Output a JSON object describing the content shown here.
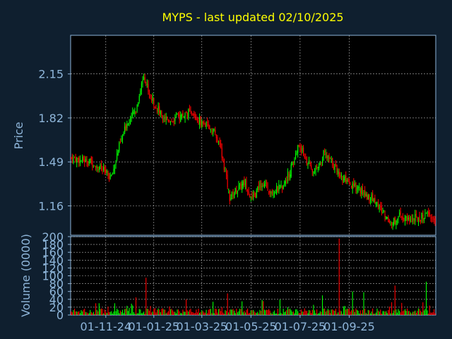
{
  "colors": {
    "background": "#0f1f2f",
    "panel": "#000000",
    "grid": "#ffffff",
    "axis": "#8eb5d9",
    "title": "#ffff00",
    "up": "#00ff00",
    "down": "#ff0000"
  },
  "chart_data": [
    {
      "type": "candlestick",
      "title": "MYPS - last updated 02/10/2025",
      "ylabel": "Price",
      "ylim": [
        0.94,
        2.44
      ],
      "yticks": [
        1.16,
        1.49,
        1.82,
        2.15
      ],
      "grid": true,
      "keypoints": [
        {
          "i": 0,
          "p": 1.52
        },
        {
          "i": 18,
          "p": 1.49
        },
        {
          "i": 28,
          "p": 1.43
        },
        {
          "i": 36,
          "p": 1.37
        },
        {
          "i": 42,
          "p": 1.58
        },
        {
          "i": 50,
          "p": 1.78
        },
        {
          "i": 58,
          "p": 1.88
        },
        {
          "i": 65,
          "p": 2.15
        },
        {
          "i": 70,
          "p": 2.0
        },
        {
          "i": 80,
          "p": 1.85
        },
        {
          "i": 90,
          "p": 1.8
        },
        {
          "i": 105,
          "p": 1.86
        },
        {
          "i": 118,
          "p": 1.78
        },
        {
          "i": 128,
          "p": 1.72
        },
        {
          "i": 135,
          "p": 1.55
        },
        {
          "i": 142,
          "p": 1.22
        },
        {
          "i": 148,
          "p": 1.28
        },
        {
          "i": 156,
          "p": 1.34
        },
        {
          "i": 162,
          "p": 1.2
        },
        {
          "i": 170,
          "p": 1.33
        },
        {
          "i": 180,
          "p": 1.27
        },
        {
          "i": 188,
          "p": 1.3
        },
        {
          "i": 196,
          "p": 1.42
        },
        {
          "i": 204,
          "p": 1.62
        },
        {
          "i": 212,
          "p": 1.48
        },
        {
          "i": 218,
          "p": 1.4
        },
        {
          "i": 226,
          "p": 1.55
        },
        {
          "i": 234,
          "p": 1.48
        },
        {
          "i": 242,
          "p": 1.38
        },
        {
          "i": 250,
          "p": 1.3
        },
        {
          "i": 256,
          "p": 1.3
        },
        {
          "i": 264,
          "p": 1.24
        },
        {
          "i": 272,
          "p": 1.2
        },
        {
          "i": 280,
          "p": 1.1
        },
        {
          "i": 287,
          "p": 1.03
        },
        {
          "i": 294,
          "p": 1.08
        },
        {
          "i": 300,
          "p": 1.06
        },
        {
          "i": 310,
          "p": 1.07
        },
        {
          "i": 318,
          "p": 1.09
        },
        {
          "i": 326,
          "p": 1.05
        }
      ]
    },
    {
      "type": "bar",
      "ylabel": "Volume (0000)",
      "ylim": [
        0,
        200
      ],
      "yticks": [
        0,
        20,
        40,
        60,
        80,
        100,
        120,
        140,
        160,
        180,
        200
      ],
      "grid": true,
      "note_peaks": [
        {
          "i": 67,
          "v": 95
        },
        {
          "i": 25,
          "v": 30
        },
        {
          "i": 58,
          "v": 45
        },
        {
          "i": 140,
          "v": 55
        },
        {
          "i": 225,
          "v": 50
        },
        {
          "i": 240,
          "v": 195
        },
        {
          "i": 252,
          "v": 60
        },
        {
          "i": 262,
          "v": 58
        },
        {
          "i": 290,
          "v": 75
        },
        {
          "i": 318,
          "v": 85
        }
      ]
    }
  ],
  "xaxis": {
    "tick_labels": [
      "01-11-24",
      "01-01-25",
      "01-03-25",
      "01-05-25",
      "01-07-25",
      "01-09-25"
    ],
    "tick_index": [
      31,
      74,
      117,
      161,
      205,
      249
    ]
  }
}
